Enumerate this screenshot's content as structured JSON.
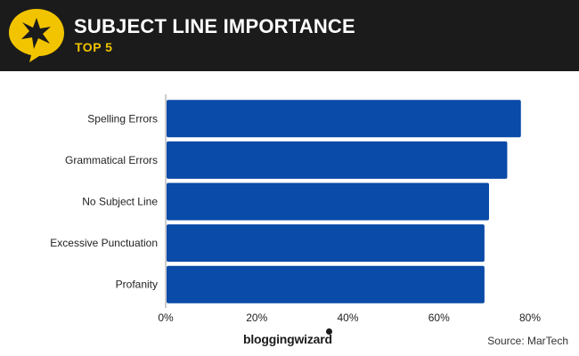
{
  "header": {
    "title": "SUBJECT LINE IMPORTANCE",
    "subtitle": "TOP 5",
    "badge_icon": "star-speech-bubble-icon"
  },
  "footer": {
    "logo_text": "bloggingwizard",
    "source": "Source: MarTech"
  },
  "colors": {
    "header_bg": "#1b1b1b",
    "accent": "#f2c400",
    "bar": "#0a4aa8"
  },
  "chart_data": {
    "type": "bar",
    "orientation": "horizontal",
    "categories": [
      "Spelling Errors",
      "Grammatical Errors",
      "No Subject Line",
      "Excessive Punctuation",
      "Profanity"
    ],
    "values": [
      78,
      75,
      71,
      70,
      70
    ],
    "unit": "%",
    "xlim": [
      0,
      80
    ],
    "xticks": [
      "0%",
      "20%",
      "40%",
      "60%",
      "80%"
    ],
    "grid": false
  }
}
